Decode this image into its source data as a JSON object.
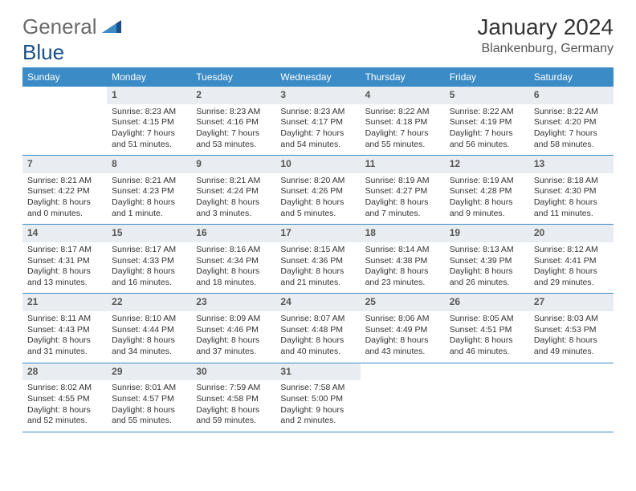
{
  "logo": {
    "word1": "General",
    "word2": "Blue"
  },
  "title": "January 2024",
  "location": "Blankenburg, Germany",
  "colors": {
    "header_bg": "#3b8bc7",
    "daynum_bg": "#e9edf1",
    "border": "#3b8bc7",
    "logo_gray": "#6a6a6a",
    "logo_blue": "#1a4f8a"
  },
  "days_of_week": [
    "Sunday",
    "Monday",
    "Tuesday",
    "Wednesday",
    "Thursday",
    "Friday",
    "Saturday"
  ],
  "weeks": [
    [
      {
        "empty": true
      },
      {
        "n": "1",
        "sunrise": "Sunrise: 8:23 AM",
        "sunset": "Sunset: 4:15 PM",
        "d1": "Daylight: 7 hours",
        "d2": "and 51 minutes."
      },
      {
        "n": "2",
        "sunrise": "Sunrise: 8:23 AM",
        "sunset": "Sunset: 4:16 PM",
        "d1": "Daylight: 7 hours",
        "d2": "and 53 minutes."
      },
      {
        "n": "3",
        "sunrise": "Sunrise: 8:23 AM",
        "sunset": "Sunset: 4:17 PM",
        "d1": "Daylight: 7 hours",
        "d2": "and 54 minutes."
      },
      {
        "n": "4",
        "sunrise": "Sunrise: 8:22 AM",
        "sunset": "Sunset: 4:18 PM",
        "d1": "Daylight: 7 hours",
        "d2": "and 55 minutes."
      },
      {
        "n": "5",
        "sunrise": "Sunrise: 8:22 AM",
        "sunset": "Sunset: 4:19 PM",
        "d1": "Daylight: 7 hours",
        "d2": "and 56 minutes."
      },
      {
        "n": "6",
        "sunrise": "Sunrise: 8:22 AM",
        "sunset": "Sunset: 4:20 PM",
        "d1": "Daylight: 7 hours",
        "d2": "and 58 minutes."
      }
    ],
    [
      {
        "n": "7",
        "sunrise": "Sunrise: 8:21 AM",
        "sunset": "Sunset: 4:22 PM",
        "d1": "Daylight: 8 hours",
        "d2": "and 0 minutes."
      },
      {
        "n": "8",
        "sunrise": "Sunrise: 8:21 AM",
        "sunset": "Sunset: 4:23 PM",
        "d1": "Daylight: 8 hours",
        "d2": "and 1 minute."
      },
      {
        "n": "9",
        "sunrise": "Sunrise: 8:21 AM",
        "sunset": "Sunset: 4:24 PM",
        "d1": "Daylight: 8 hours",
        "d2": "and 3 minutes."
      },
      {
        "n": "10",
        "sunrise": "Sunrise: 8:20 AM",
        "sunset": "Sunset: 4:26 PM",
        "d1": "Daylight: 8 hours",
        "d2": "and 5 minutes."
      },
      {
        "n": "11",
        "sunrise": "Sunrise: 8:19 AM",
        "sunset": "Sunset: 4:27 PM",
        "d1": "Daylight: 8 hours",
        "d2": "and 7 minutes."
      },
      {
        "n": "12",
        "sunrise": "Sunrise: 8:19 AM",
        "sunset": "Sunset: 4:28 PM",
        "d1": "Daylight: 8 hours",
        "d2": "and 9 minutes."
      },
      {
        "n": "13",
        "sunrise": "Sunrise: 8:18 AM",
        "sunset": "Sunset: 4:30 PM",
        "d1": "Daylight: 8 hours",
        "d2": "and 11 minutes."
      }
    ],
    [
      {
        "n": "14",
        "sunrise": "Sunrise: 8:17 AM",
        "sunset": "Sunset: 4:31 PM",
        "d1": "Daylight: 8 hours",
        "d2": "and 13 minutes."
      },
      {
        "n": "15",
        "sunrise": "Sunrise: 8:17 AM",
        "sunset": "Sunset: 4:33 PM",
        "d1": "Daylight: 8 hours",
        "d2": "and 16 minutes."
      },
      {
        "n": "16",
        "sunrise": "Sunrise: 8:16 AM",
        "sunset": "Sunset: 4:34 PM",
        "d1": "Daylight: 8 hours",
        "d2": "and 18 minutes."
      },
      {
        "n": "17",
        "sunrise": "Sunrise: 8:15 AM",
        "sunset": "Sunset: 4:36 PM",
        "d1": "Daylight: 8 hours",
        "d2": "and 21 minutes."
      },
      {
        "n": "18",
        "sunrise": "Sunrise: 8:14 AM",
        "sunset": "Sunset: 4:38 PM",
        "d1": "Daylight: 8 hours",
        "d2": "and 23 minutes."
      },
      {
        "n": "19",
        "sunrise": "Sunrise: 8:13 AM",
        "sunset": "Sunset: 4:39 PM",
        "d1": "Daylight: 8 hours",
        "d2": "and 26 minutes."
      },
      {
        "n": "20",
        "sunrise": "Sunrise: 8:12 AM",
        "sunset": "Sunset: 4:41 PM",
        "d1": "Daylight: 8 hours",
        "d2": "and 29 minutes."
      }
    ],
    [
      {
        "n": "21",
        "sunrise": "Sunrise: 8:11 AM",
        "sunset": "Sunset: 4:43 PM",
        "d1": "Daylight: 8 hours",
        "d2": "and 31 minutes."
      },
      {
        "n": "22",
        "sunrise": "Sunrise: 8:10 AM",
        "sunset": "Sunset: 4:44 PM",
        "d1": "Daylight: 8 hours",
        "d2": "and 34 minutes."
      },
      {
        "n": "23",
        "sunrise": "Sunrise: 8:09 AM",
        "sunset": "Sunset: 4:46 PM",
        "d1": "Daylight: 8 hours",
        "d2": "and 37 minutes."
      },
      {
        "n": "24",
        "sunrise": "Sunrise: 8:07 AM",
        "sunset": "Sunset: 4:48 PM",
        "d1": "Daylight: 8 hours",
        "d2": "and 40 minutes."
      },
      {
        "n": "25",
        "sunrise": "Sunrise: 8:06 AM",
        "sunset": "Sunset: 4:49 PM",
        "d1": "Daylight: 8 hours",
        "d2": "and 43 minutes."
      },
      {
        "n": "26",
        "sunrise": "Sunrise: 8:05 AM",
        "sunset": "Sunset: 4:51 PM",
        "d1": "Daylight: 8 hours",
        "d2": "and 46 minutes."
      },
      {
        "n": "27",
        "sunrise": "Sunrise: 8:03 AM",
        "sunset": "Sunset: 4:53 PM",
        "d1": "Daylight: 8 hours",
        "d2": "and 49 minutes."
      }
    ],
    [
      {
        "n": "28",
        "sunrise": "Sunrise: 8:02 AM",
        "sunset": "Sunset: 4:55 PM",
        "d1": "Daylight: 8 hours",
        "d2": "and 52 minutes."
      },
      {
        "n": "29",
        "sunrise": "Sunrise: 8:01 AM",
        "sunset": "Sunset: 4:57 PM",
        "d1": "Daylight: 8 hours",
        "d2": "and 55 minutes."
      },
      {
        "n": "30",
        "sunrise": "Sunrise: 7:59 AM",
        "sunset": "Sunset: 4:58 PM",
        "d1": "Daylight: 8 hours",
        "d2": "and 59 minutes."
      },
      {
        "n": "31",
        "sunrise": "Sunrise: 7:58 AM",
        "sunset": "Sunset: 5:00 PM",
        "d1": "Daylight: 9 hours",
        "d2": "and 2 minutes."
      },
      {
        "empty": true
      },
      {
        "empty": true
      },
      {
        "empty": true
      }
    ]
  ]
}
